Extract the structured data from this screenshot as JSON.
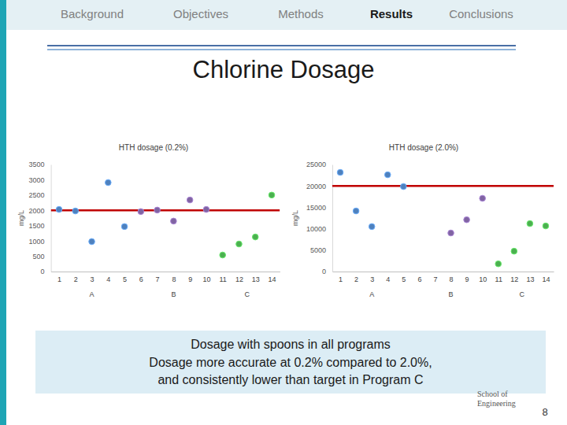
{
  "page": {
    "nav": [
      "Background",
      "Objectives",
      "Methods",
      "Results",
      "Conclusions"
    ],
    "active": "Results",
    "heading": "Chlorine Dosage",
    "caption": [
      "Dosage with spoons in all programs",
      "Dosage more accurate at 0.2% compared to 2.0%,",
      "and consistently lower than target in Program C"
    ],
    "logo": [
      "School of",
      "Engineering"
    ],
    "page_number": 8
  },
  "chart_data": [
    {
      "type": "scatter",
      "title": "HTH dosage (0.2%)",
      "y_label": "mg/L",
      "xlim": [
        0.5,
        14.5
      ],
      "xticks": [
        1,
        2,
        3,
        4,
        5,
        6,
        7,
        8,
        9,
        10,
        11,
        12,
        13,
        14
      ],
      "ylim": [
        0,
        3500
      ],
      "yticks": [
        0,
        500,
        1000,
        1500,
        2000,
        2500,
        3000,
        3500
      ],
      "target": 2000,
      "marker": "circle",
      "series": [
        {
          "name": "A",
          "color": "#4f81bd",
          "x": [
            1,
            2,
            3,
            4,
            5
          ],
          "values": [
            2030,
            1980,
            980,
            2910,
            1470
          ]
        },
        {
          "name": "B",
          "color": "#8064a2",
          "x": [
            6,
            7,
            8,
            9,
            10
          ],
          "values": [
            1960,
            2010,
            1650,
            2340,
            2030
          ]
        },
        {
          "name": "C",
          "color": "#4caf50",
          "x": [
            11,
            12,
            13,
            14
          ],
          "values": [
            540,
            900,
            1130,
            2500
          ]
        }
      ]
    },
    {
      "type": "scatter",
      "title": "HTH dosage (2.0%)",
      "y_label": "mg/L",
      "xlim": [
        0.5,
        14.5
      ],
      "xticks": [
        1,
        2,
        3,
        4,
        5,
        6,
        7,
        8,
        9,
        10,
        11,
        12,
        13,
        14
      ],
      "ylim": [
        0,
        25000
      ],
      "yticks": [
        0,
        5000,
        10000,
        15000,
        20000,
        25000
      ],
      "target": 20000,
      "marker": "circle",
      "series": [
        {
          "name": "A",
          "color": "#4f81bd",
          "x": [
            1,
            2,
            3,
            4,
            5
          ],
          "values": [
            23150,
            14150,
            10500,
            22600,
            19850
          ]
        },
        {
          "name": "B",
          "color": "#8064a2",
          "x": [
            6,
            7,
            8,
            9,
            10
          ],
          "values": [
            null,
            null,
            9000,
            12100,
            17100
          ]
        },
        {
          "name": "C",
          "color": "#4caf50",
          "x": [
            11,
            12,
            13,
            14
          ],
          "values": [
            1800,
            4750,
            11200,
            10650
          ]
        }
      ]
    }
  ]
}
